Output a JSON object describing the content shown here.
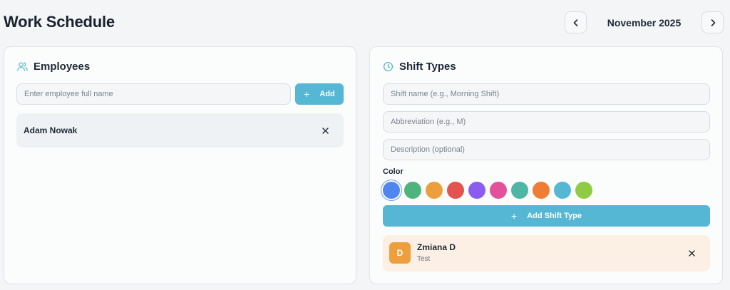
{
  "header": {
    "title": "Work Schedule",
    "month": "November 2025",
    "prev_icon": "chevron-left-icon",
    "next_icon": "chevron-right-icon"
  },
  "employees": {
    "title": "Employees",
    "icon": "users-icon",
    "name_input": {
      "placeholder": "Enter employee full name",
      "value": ""
    },
    "add_label": "Add",
    "list": [
      {
        "name": "Adam Nowak",
        "remove_icon": "close-icon"
      }
    ]
  },
  "shift_types": {
    "title": "Shift Types",
    "icon": "clock-icon",
    "name_input": {
      "placeholder": "Shift name (e.g., Morning Shift)",
      "value": ""
    },
    "abbr_input": {
      "placeholder": "Abbreviation (e.g., M)",
      "value": ""
    },
    "desc_input": {
      "placeholder": "Description (optional)",
      "value": ""
    },
    "color_label": "Color",
    "colors": [
      "#4f86ef",
      "#4fb47c",
      "#ee9f3d",
      "#e35450",
      "#8b5cf0",
      "#e2519a",
      "#4fb5a4",
      "#ef7d35",
      "#55b7d4",
      "#8fcb45"
    ],
    "selected_color": "#4f86ef",
    "add_label": "Add Shift Type",
    "list": [
      {
        "abbreviation": "D",
        "name": "Zmiana D",
        "description": "Test",
        "color": "#ee9f3d",
        "background": "#fcf0e4",
        "remove_icon": "close-icon"
      }
    ]
  },
  "accent_color": "#55b7d4"
}
